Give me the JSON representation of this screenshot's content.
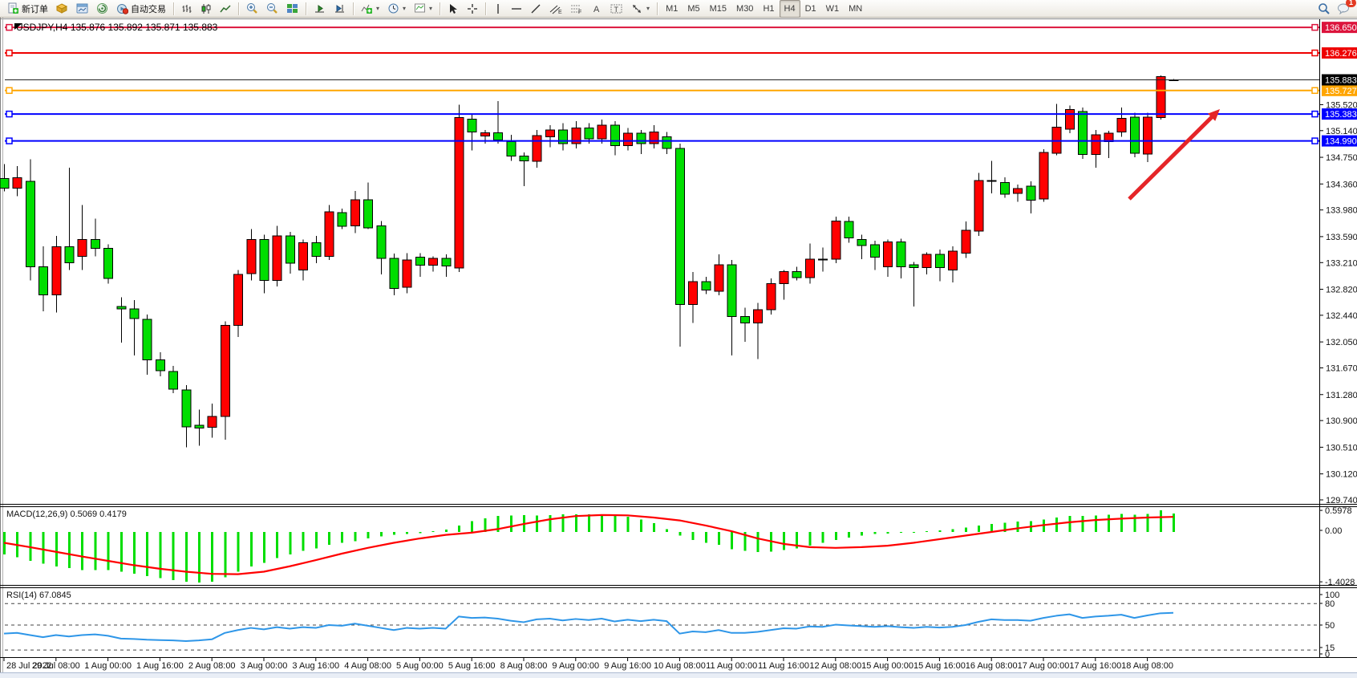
{
  "toolbar": {
    "new_order_label": "新订单",
    "auto_trading_label": "自动交易",
    "timeframes": [
      "M1",
      "M5",
      "M15",
      "M30",
      "H1",
      "H4",
      "D1",
      "W1",
      "MN"
    ],
    "active_timeframe": "H4",
    "notification_count": "1"
  },
  "header": {
    "symbol_period": "USDJPY,H4",
    "ohlc": "135.876 135.892 135.871 135.883"
  },
  "indicators": {
    "macd": {
      "label": "MACD(12,26,9)",
      "values": "0.5069 0.4179",
      "scale": {
        "max": "0.5978",
        "zero": "0.00",
        "min": "-1.4028"
      }
    },
    "rsi": {
      "label": "RSI(14)",
      "value": "67.0845",
      "scale_labels": [
        "100",
        "80",
        "50",
        "15",
        "0"
      ]
    }
  },
  "price_axis": {
    "current": "135.883",
    "ticks": [
      "135.520",
      "135.140",
      "134.750",
      "134.360",
      "133.980",
      "133.590",
      "133.210",
      "132.820",
      "132.440",
      "132.050",
      "131.670",
      "131.280",
      "130.900",
      "130.510",
      "130.120",
      "129.740"
    ]
  },
  "colors": {
    "up_candle": "#FF0000",
    "down_candle": "#00DE00",
    "candle_border": "#000000",
    "line_crimson": "#DC143C",
    "line_red": "#EE0000",
    "line_orange": "#FFA500",
    "line_blue": "#0000FF",
    "bid_line": "#222222",
    "macd_hist": "#00DE00",
    "macd_signal": "#FF0000",
    "rsi_line": "#2E96E8",
    "arrow": "#E52528"
  },
  "chart_data": {
    "type": "candlestick",
    "title": "USDJPY,H4 135.876 135.892 135.871 135.883",
    "symbol": "USDJPY",
    "period": "H4",
    "ylim": [
      129.6,
      136.8
    ],
    "grid": false,
    "time_labels": [
      "28 Jul 2022",
      "29 Jul 08:00",
      "1 Aug 00:00",
      "1 Aug 16:00",
      "2 Aug 08:00",
      "3 Aug 00:00",
      "3 Aug 16:00",
      "4 Aug 08:00",
      "5 Aug 00:00",
      "5 Aug 16:00",
      "8 Aug 08:00",
      "9 Aug 00:00",
      "9 Aug 16:00",
      "10 Aug 08:00",
      "11 Aug 00:00",
      "11 Aug 16:00",
      "12 Aug 08:00",
      "15 Aug 00:00",
      "15 Aug 16:00",
      "16 Aug 08:00",
      "17 Aug 00:00",
      "17 Aug 16:00",
      "18 Aug 08:00"
    ],
    "candles_per_label": 4,
    "candles": [
      [
        134.44,
        134.65,
        134.25,
        134.3
      ],
      [
        134.3,
        134.62,
        134.18,
        134.45
      ],
      [
        134.4,
        134.72,
        132.95,
        133.15
      ],
      [
        133.15,
        133.45,
        132.5,
        132.74
      ],
      [
        132.74,
        133.6,
        132.48,
        133.44
      ],
      [
        133.44,
        134.6,
        133.1,
        133.21
      ],
      [
        133.3,
        134.05,
        133.1,
        133.55
      ],
      [
        133.55,
        133.85,
        133.3,
        133.42
      ],
      [
        133.42,
        133.48,
        132.9,
        132.98
      ],
      [
        132.57,
        132.7,
        132.04,
        132.53
      ],
      [
        132.53,
        132.66,
        131.85,
        132.39
      ],
      [
        132.38,
        132.45,
        131.57,
        131.79
      ],
      [
        131.79,
        131.9,
        131.55,
        131.63
      ],
      [
        131.62,
        131.7,
        131.3,
        131.36
      ],
      [
        131.35,
        131.42,
        130.51,
        130.81
      ],
      [
        130.83,
        131.06,
        130.53,
        130.79
      ],
      [
        130.8,
        131.15,
        130.65,
        130.96
      ],
      [
        130.96,
        132.35,
        130.62,
        132.29
      ],
      [
        132.29,
        133.1,
        132.12,
        133.04
      ],
      [
        133.05,
        133.7,
        132.95,
        133.55
      ],
      [
        133.55,
        133.62,
        132.76,
        132.95
      ],
      [
        132.95,
        133.75,
        132.86,
        133.6
      ],
      [
        133.6,
        133.66,
        133.05,
        133.2
      ],
      [
        133.1,
        133.55,
        132.95,
        133.5
      ],
      [
        133.5,
        133.6,
        133.2,
        133.3
      ],
      [
        133.3,
        134.05,
        133.25,
        133.95
      ],
      [
        133.94,
        134.0,
        133.7,
        133.74
      ],
      [
        133.75,
        134.26,
        133.64,
        134.13
      ],
      [
        134.13,
        134.38,
        133.7,
        133.72
      ],
      [
        133.75,
        133.82,
        133.04,
        133.27
      ],
      [
        133.27,
        133.34,
        132.73,
        132.83
      ],
      [
        132.85,
        133.35,
        132.76,
        133.25
      ],
      [
        133.29,
        133.35,
        133.0,
        133.17
      ],
      [
        133.17,
        133.3,
        133.08,
        133.27
      ],
      [
        133.27,
        133.33,
        133.0,
        133.16
      ],
      [
        133.13,
        135.52,
        133.07,
        135.33
      ],
      [
        135.31,
        135.37,
        134.85,
        135.12
      ],
      [
        135.06,
        135.15,
        134.95,
        135.11
      ],
      [
        135.11,
        135.57,
        134.95,
        135.0
      ],
      [
        134.98,
        135.08,
        134.7,
        134.77
      ],
      [
        134.77,
        134.82,
        134.33,
        134.7
      ],
      [
        134.69,
        135.15,
        134.6,
        135.07
      ],
      [
        135.05,
        135.22,
        134.9,
        135.15
      ],
      [
        135.15,
        135.25,
        134.85,
        134.95
      ],
      [
        134.95,
        135.28,
        134.88,
        135.18
      ],
      [
        135.18,
        135.25,
        134.95,
        135.02
      ],
      [
        135.02,
        135.3,
        134.95,
        135.22
      ],
      [
        135.22,
        135.28,
        134.78,
        134.92
      ],
      [
        134.92,
        135.18,
        134.85,
        135.1
      ],
      [
        135.1,
        135.15,
        134.8,
        134.95
      ],
      [
        134.95,
        135.22,
        134.88,
        135.12
      ],
      [
        135.05,
        135.12,
        134.8,
        134.88
      ],
      [
        134.88,
        134.95,
        131.98,
        132.6
      ],
      [
        132.6,
        133.07,
        132.33,
        132.93
      ],
      [
        132.93,
        133.0,
        132.75,
        132.81
      ],
      [
        132.79,
        133.33,
        132.73,
        133.18
      ],
      [
        133.18,
        133.25,
        131.85,
        132.42
      ],
      [
        132.42,
        132.55,
        132.05,
        132.33
      ],
      [
        132.33,
        132.62,
        131.8,
        132.52
      ],
      [
        132.52,
        132.98,
        132.45,
        132.9
      ],
      [
        132.9,
        133.1,
        132.67,
        133.08
      ],
      [
        133.08,
        133.15,
        132.95,
        132.99
      ],
      [
        132.99,
        133.49,
        132.9,
        133.26
      ],
      [
        133.26,
        133.43,
        133.08,
        133.26
      ],
      [
        133.26,
        133.88,
        133.2,
        133.82
      ],
      [
        133.81,
        133.88,
        133.5,
        133.57
      ],
      [
        133.55,
        133.62,
        133.26,
        133.46
      ],
      [
        133.47,
        133.53,
        133.1,
        133.29
      ],
      [
        133.15,
        133.55,
        133.0,
        133.51
      ],
      [
        133.51,
        133.56,
        132.98,
        133.15
      ],
      [
        133.18,
        133.22,
        132.57,
        133.14
      ],
      [
        133.14,
        133.36,
        133.04,
        133.33
      ],
      [
        133.33,
        133.4,
        132.94,
        133.14
      ],
      [
        133.1,
        133.45,
        132.92,
        133.38
      ],
      [
        133.35,
        133.81,
        133.28,
        133.68
      ],
      [
        133.67,
        134.52,
        133.6,
        134.41
      ],
      [
        134.41,
        134.7,
        134.22,
        134.41
      ],
      [
        134.38,
        134.46,
        134.16,
        134.21
      ],
      [
        134.22,
        134.35,
        134.1,
        134.29
      ],
      [
        134.33,
        134.4,
        133.93,
        134.12
      ],
      [
        134.14,
        134.87,
        134.1,
        134.82
      ],
      [
        134.81,
        135.53,
        134.78,
        135.19
      ],
      [
        135.16,
        135.51,
        135.1,
        135.45
      ],
      [
        135.42,
        135.48,
        134.73,
        134.79
      ],
      [
        134.79,
        135.15,
        134.6,
        135.08
      ],
      [
        134.98,
        135.14,
        134.74,
        135.1
      ],
      [
        135.12,
        135.48,
        135.05,
        135.32
      ],
      [
        135.34,
        135.4,
        134.75,
        134.81
      ],
      [
        134.8,
        135.4,
        134.68,
        135.34
      ],
      [
        135.33,
        135.95,
        135.3,
        135.93
      ],
      [
        135.876,
        135.892,
        135.871,
        135.883
      ]
    ],
    "horizontal_lines": [
      {
        "price": 136.65,
        "label": "136.650",
        "color": "#DC143C"
      },
      {
        "price": 136.276,
        "label": "136.276",
        "color": "#EE0000"
      },
      {
        "price": 135.727,
        "label": "135.727",
        "color": "#FFA500"
      },
      {
        "price": 135.383,
        "label": "135.383",
        "color": "#0000FF"
      },
      {
        "price": 134.99,
        "label": "134.990",
        "color": "#0000FF"
      }
    ],
    "bid_price": 135.883,
    "macd": {
      "histogram": [
        -0.62,
        -0.7,
        -0.8,
        -0.88,
        -0.95,
        -1.0,
        -1.05,
        -1.06,
        -1.05,
        -1.1,
        -1.16,
        -1.22,
        -1.28,
        -1.33,
        -1.38,
        -1.4028,
        -1.38,
        -1.25,
        -1.1,
        -0.95,
        -0.85,
        -0.72,
        -0.62,
        -0.52,
        -0.45,
        -0.36,
        -0.3,
        -0.25,
        -0.18,
        -0.12,
        -0.08,
        -0.05,
        -0.03,
        0.02,
        0.07,
        0.18,
        0.3,
        0.38,
        0.44,
        0.46,
        0.47,
        0.46,
        0.47,
        0.49,
        0.49,
        0.49,
        0.48,
        0.46,
        0.42,
        0.34,
        0.24,
        0.08,
        -0.1,
        -0.22,
        -0.3,
        -0.36,
        -0.48,
        -0.52,
        -0.55,
        -0.54,
        -0.5,
        -0.45,
        -0.38,
        -0.3,
        -0.22,
        -0.15,
        -0.1,
        -0.06,
        -0.04,
        -0.02,
        0.0,
        0.02,
        0.05,
        0.08,
        0.12,
        0.18,
        0.22,
        0.26,
        0.29,
        0.3,
        0.34,
        0.4,
        0.44,
        0.44,
        0.46,
        0.48,
        0.5,
        0.48,
        0.5,
        0.5978,
        0.5069
      ],
      "signal_points": [
        [
          0,
          -0.3
        ],
        [
          2,
          -0.42
        ],
        [
          4,
          -0.55
        ],
        [
          6,
          -0.68
        ],
        [
          8,
          -0.8
        ],
        [
          10,
          -0.92
        ],
        [
          12,
          -1.02
        ],
        [
          14,
          -1.1
        ],
        [
          16,
          -1.16
        ],
        [
          18,
          -1.17
        ],
        [
          20,
          -1.1
        ],
        [
          22,
          -0.95
        ],
        [
          24,
          -0.78
        ],
        [
          26,
          -0.6
        ],
        [
          28,
          -0.44
        ],
        [
          30,
          -0.3
        ],
        [
          32,
          -0.18
        ],
        [
          34,
          -0.08
        ],
        [
          36,
          -0.02
        ],
        [
          38,
          0.08
        ],
        [
          40,
          0.22
        ],
        [
          42,
          0.35
        ],
        [
          44,
          0.44
        ],
        [
          46,
          0.47
        ],
        [
          48,
          0.46
        ],
        [
          50,
          0.4
        ],
        [
          52,
          0.32
        ],
        [
          54,
          0.18
        ],
        [
          56,
          0.02
        ],
        [
          58,
          -0.18
        ],
        [
          60,
          -0.33
        ],
        [
          62,
          -0.42
        ],
        [
          64,
          -0.44
        ],
        [
          66,
          -0.42
        ],
        [
          68,
          -0.38
        ],
        [
          70,
          -0.3
        ],
        [
          72,
          -0.2
        ],
        [
          74,
          -0.1
        ],
        [
          76,
          0.0
        ],
        [
          78,
          0.1
        ],
        [
          80,
          0.19
        ],
        [
          82,
          0.27
        ],
        [
          84,
          0.33
        ],
        [
          86,
          0.37
        ],
        [
          88,
          0.4
        ],
        [
          90,
          0.4179
        ]
      ],
      "scale_max": 0.5978,
      "scale_min": -1.4028
    },
    "rsi": {
      "values": [
        38,
        39,
        36,
        33,
        36,
        34,
        36,
        37,
        35,
        31,
        30.5,
        29.5,
        29,
        28.5,
        27.5,
        28.5,
        30,
        39,
        43,
        46,
        44,
        47,
        45,
        47,
        46,
        50,
        49,
        52,
        49,
        46,
        43,
        46,
        45,
        46,
        45,
        62,
        60,
        60.5,
        59,
        56,
        54,
        58,
        59,
        56.5,
        58.5,
        57,
        59,
        55,
        57.5,
        55.5,
        57.5,
        55.5,
        38,
        41,
        40,
        43,
        39,
        39,
        40.5,
        43,
        45.5,
        45,
        48,
        47.5,
        50.5,
        49.5,
        48.5,
        47.5,
        48.5,
        47,
        46,
        47.5,
        46.5,
        47.5,
        50,
        54.5,
        58,
        57,
        57,
        56,
        60,
        63,
        65,
        60,
        62,
        63,
        64.5,
        60,
        63.5,
        66.5,
        67.1
      ],
      "levels": [
        80,
        50,
        15
      ]
    },
    "trend_arrow": {
      "from": [
        1408,
        248
      ],
      "to": [
        1521,
        136
      ]
    }
  }
}
